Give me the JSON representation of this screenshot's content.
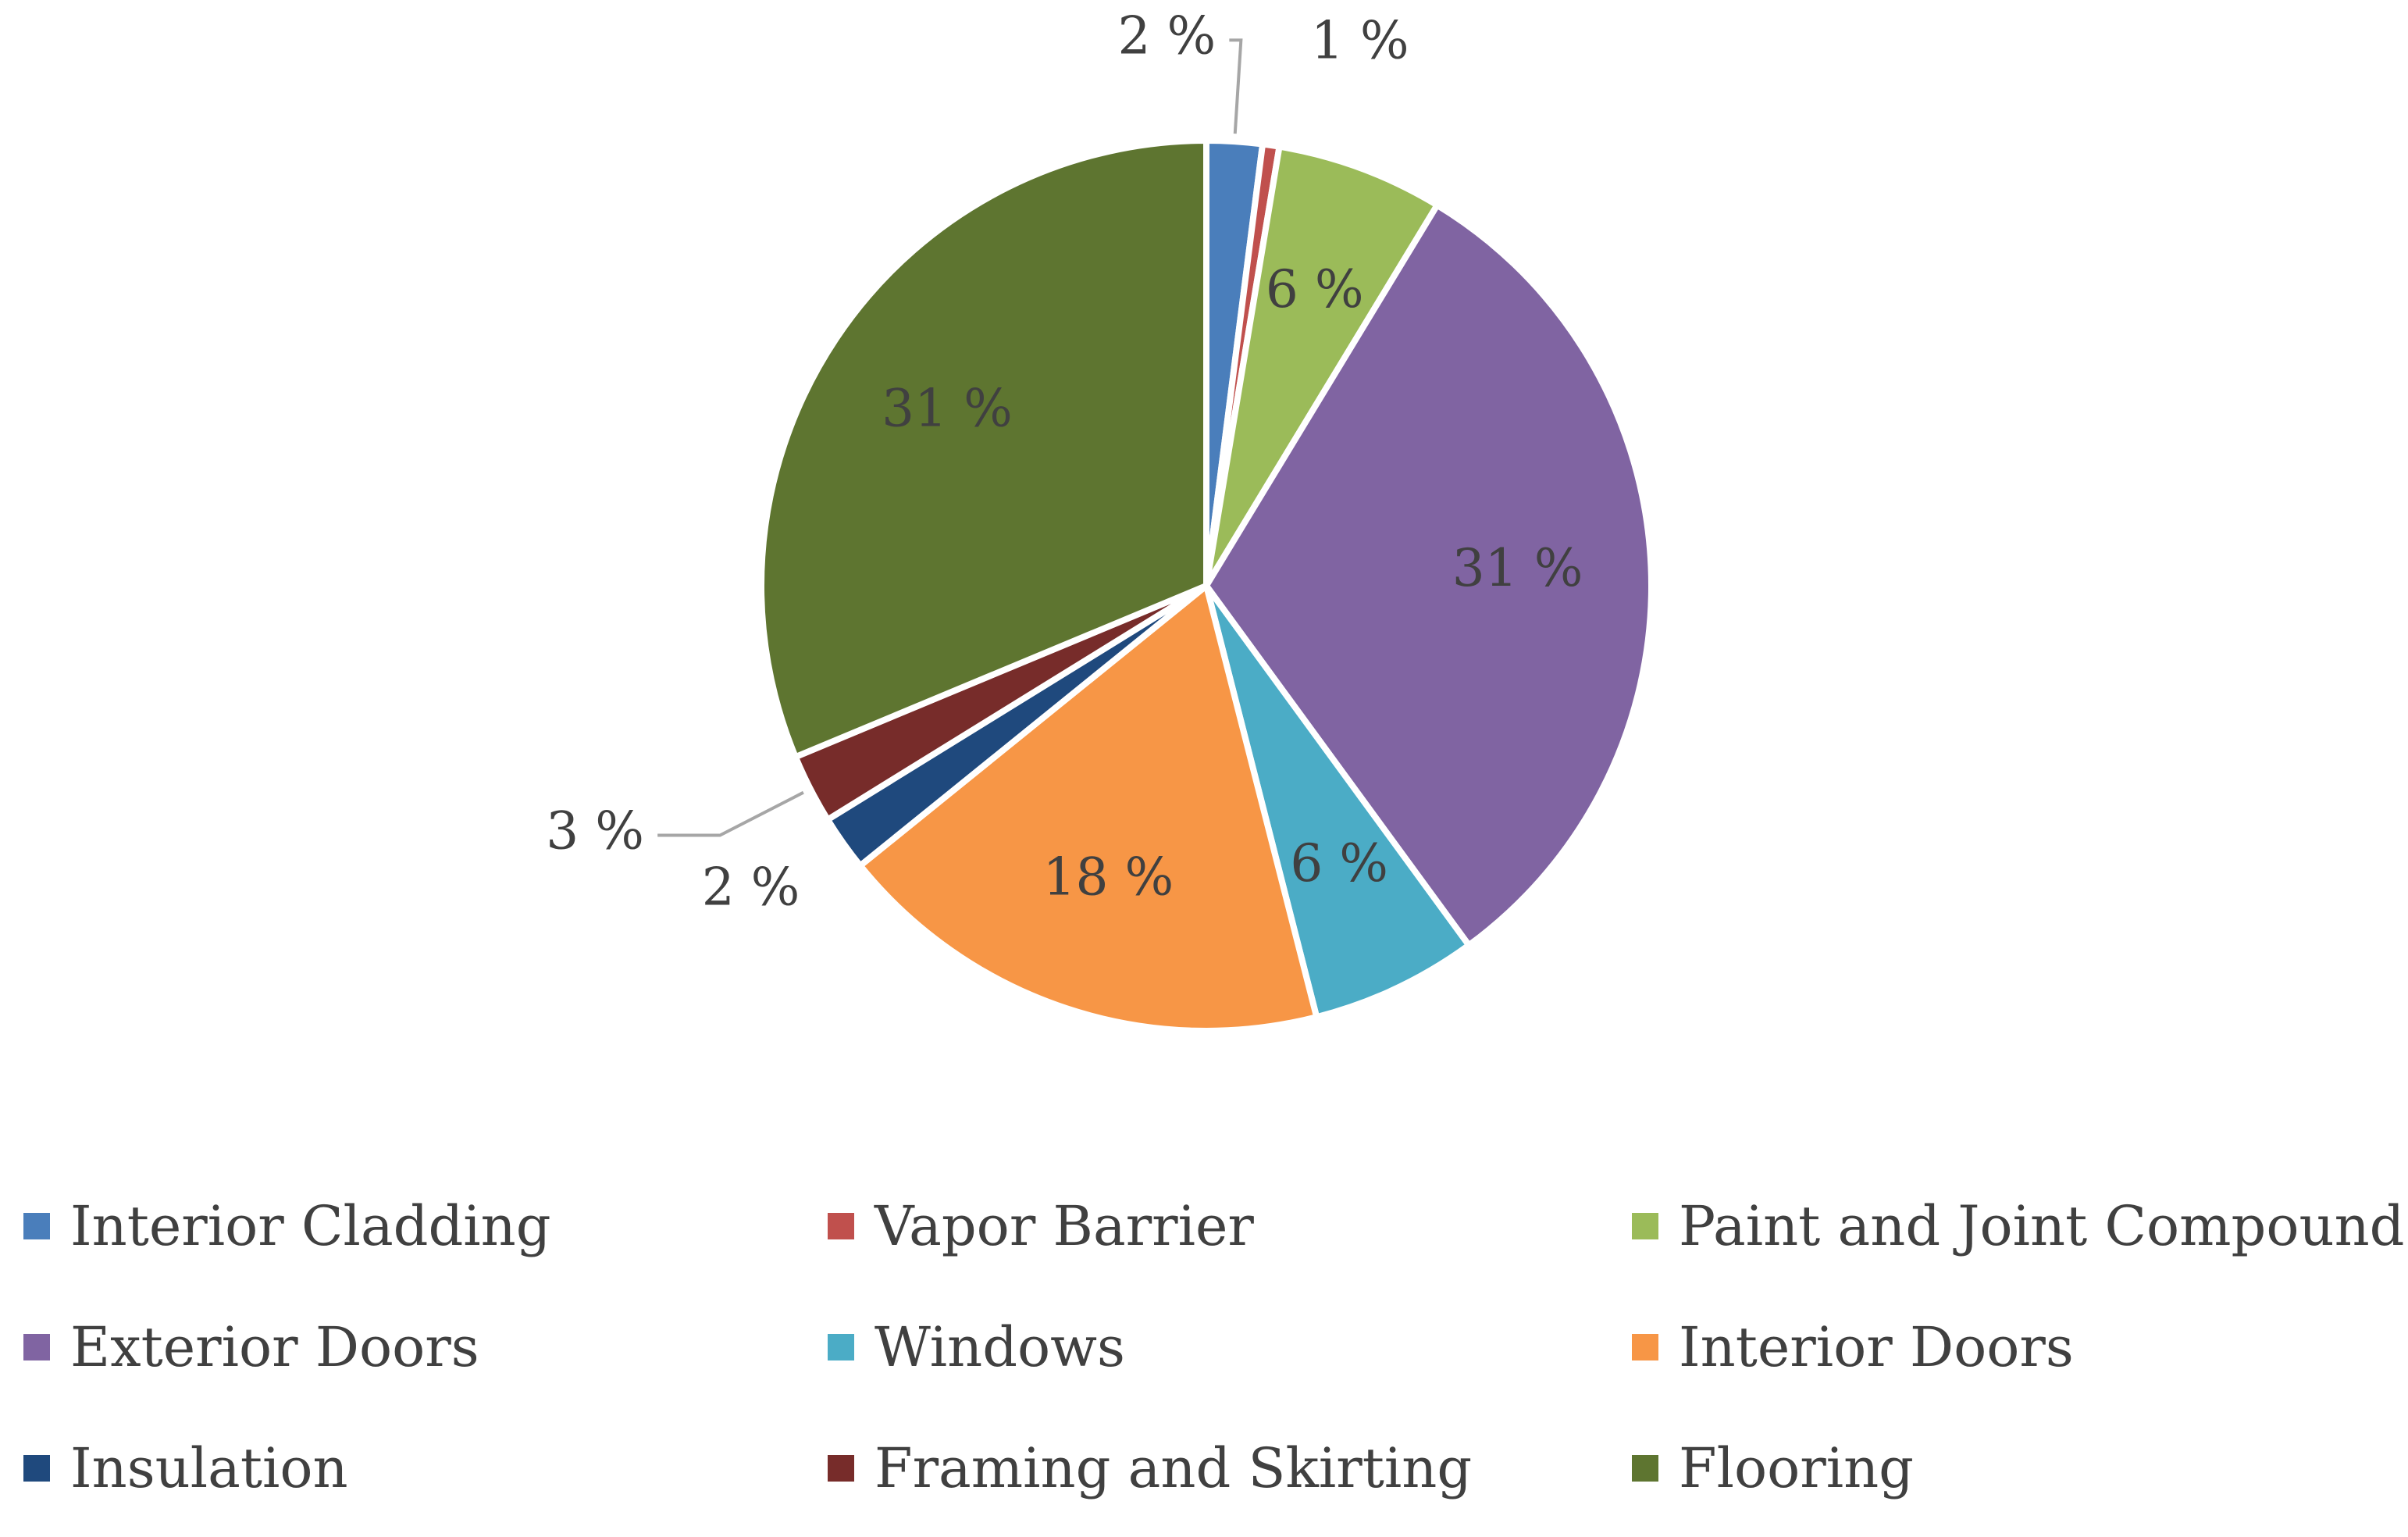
{
  "chart_data": {
    "type": "pie",
    "title": "",
    "legend_position": "bottom",
    "categories": [
      "Interior Cladding",
      "Vapor Barrier",
      "Paint and Joint Compound",
      "Exterior Doors",
      "Windows",
      "Interior Doors",
      "Insulation",
      "Framing and Skirting",
      "Flooring"
    ],
    "values": [
      2,
      0.6,
      6,
      31,
      6,
      18,
      2,
      2.5,
      31
    ],
    "labels": [
      "2 %",
      "1 %",
      "6 %",
      "31 %",
      "6 %",
      "18 %",
      "2 %",
      "3 %",
      "31 %"
    ],
    "colors": [
      "#4a7ebb",
      "#c0504d",
      "#9bbb59",
      "#8064a2",
      "#4bacc6",
      "#f79646",
      "#1f497d",
      "#772c2a",
      "#5e7530"
    ]
  }
}
